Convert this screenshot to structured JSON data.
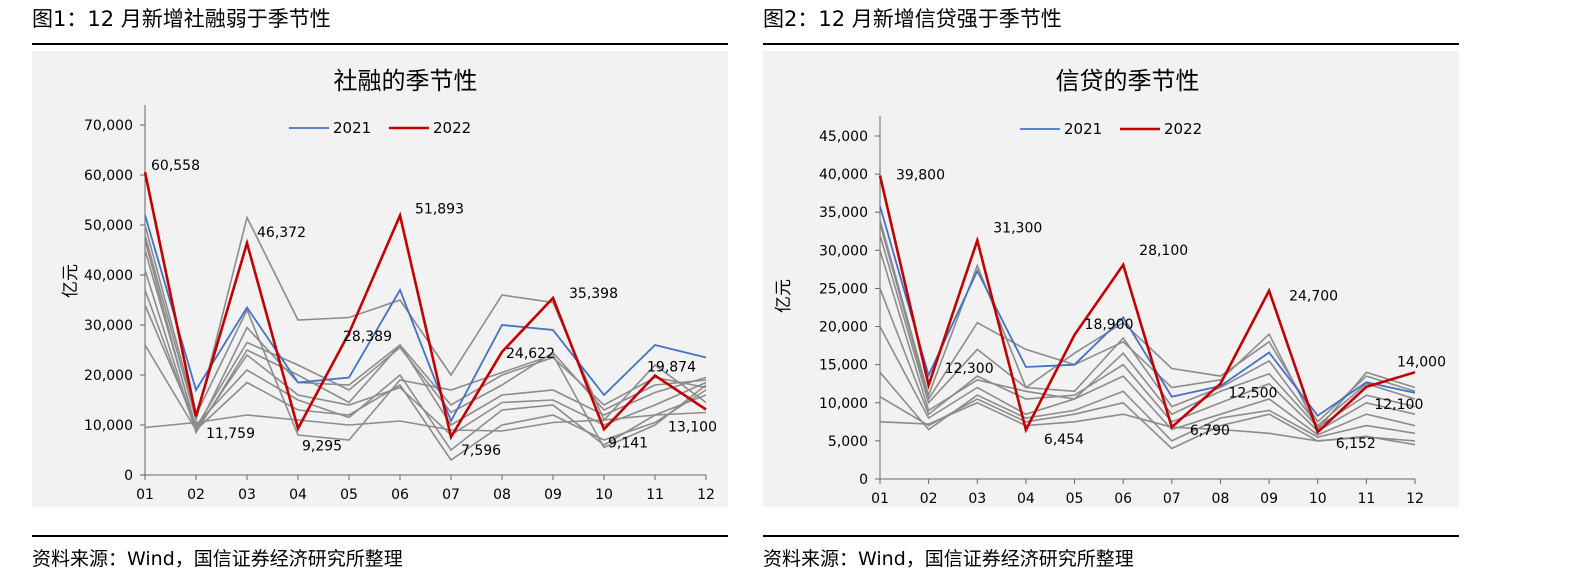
{
  "panels": [
    {
      "figure_title": "图1：12 月新增社融弱于季节性",
      "source": "资料来源：Wind，国信证券经济研究所整理",
      "chart_data": {
        "type": "line",
        "title": "社融的季节性",
        "ylabel": "亿元",
        "xlabel": "",
        "ylim": [
          0,
          70000
        ],
        "y_ticks": [
          0,
          10000,
          20000,
          30000,
          40000,
          50000,
          60000,
          70000
        ],
        "y_tick_labels": [
          "0",
          "10,000",
          "20,000",
          "30,000",
          "40,000",
          "50,000",
          "60,000",
          "70,000"
        ],
        "categories": [
          "01",
          "02",
          "03",
          "04",
          "05",
          "06",
          "07",
          "08",
          "09",
          "10",
          "11",
          "12"
        ],
        "legend_position": "top",
        "grid": false,
        "series": [
          {
            "name": "2021",
            "color": "#4472c4",
            "highlight": false,
            "values": [
              52000,
              17000,
              33500,
              18500,
              19500,
              37000,
              10800,
              30000,
              29000,
              16000,
              26000,
              23500
            ]
          },
          {
            "name": "2022",
            "color": "#c00000",
            "highlight": true,
            "values": [
              60558,
              11759,
              46372,
              9295,
              28389,
              51893,
              7596,
              24622,
              35398,
              9141,
              19874,
              13100
            ]
          },
          {
            "color": "#8c8c8c",
            "values": [
              9500,
              10500,
              12000,
              11000,
              10000,
              10800,
              9000,
              8800,
              10500,
              11000,
              12000,
              12500
            ]
          },
          {
            "color": "#8c8c8c",
            "values": [
              26000,
              9000,
              18500,
              13000,
              12000,
              18000,
              3000,
              10000,
              12000,
              7000,
              10500,
              17000
            ]
          },
          {
            "color": "#8c8c8c",
            "values": [
              34000,
              10000,
              21000,
              15000,
              11500,
              20000,
              5000,
              13000,
              14000,
              6000,
              12000,
              16000
            ]
          },
          {
            "color": "#8c8c8c",
            "values": [
              37000,
              9000,
              24000,
              16000,
              14000,
              17500,
              8000,
              14500,
              15000,
              10000,
              14000,
              18500
            ]
          },
          {
            "color": "#8c8c8c",
            "values": [
              41000,
              8500,
              25000,
              20000,
              14500,
              26000,
              10000,
              16000,
              17000,
              12000,
              16500,
              19500
            ]
          },
          {
            "color": "#8c8c8c",
            "values": [
              45000,
              9500,
              26500,
              22000,
              17000,
              25500,
              12500,
              18000,
              24500,
              13000,
              18000,
              19000
            ]
          },
          {
            "color": "#8c8c8c",
            "values": [
              47000,
              8700,
              29500,
              18500,
              18000,
              26000,
              14000,
              20000,
              23500,
              14000,
              19500,
              17500
            ]
          },
          {
            "color": "#8c8c8c",
            "values": [
              50000,
              12000,
              33000,
              8000,
              7000,
              19000,
              17000,
              20500,
              24000,
              5500,
              10000,
              18000
            ]
          },
          {
            "color": "#8c8c8c",
            "values": [
              48000,
              11000,
              51500,
              31000,
              31500,
              35000,
              20000,
              36000,
              34500,
              11000,
              22000,
              14500
            ]
          }
        ],
        "data_labels": [
          {
            "series": 1,
            "index": 0,
            "text": "60,558"
          },
          {
            "series": 1,
            "index": 1,
            "text": "11,759"
          },
          {
            "series": 1,
            "index": 2,
            "text": "46,372"
          },
          {
            "series": 1,
            "index": 3,
            "text": "9,295"
          },
          {
            "series": 1,
            "index": 4,
            "text": "28,389"
          },
          {
            "series": 1,
            "index": 5,
            "text": "51,893"
          },
          {
            "series": 1,
            "index": 6,
            "text": "7,596"
          },
          {
            "series": 1,
            "index": 7,
            "text": "24,622"
          },
          {
            "series": 1,
            "index": 8,
            "text": "35,398"
          },
          {
            "series": 1,
            "index": 9,
            "text": "9,141"
          },
          {
            "series": 1,
            "index": 10,
            "text": "19,874"
          },
          {
            "series": 1,
            "index": 11,
            "text": "13,100"
          }
        ]
      }
    },
    {
      "figure_title": "图2：12 月新增信贷强于季节性",
      "source": "资料来源：Wind，国信证券经济研究所整理",
      "chart_data": {
        "type": "line",
        "title": "信贷的季节性",
        "ylabel": "亿元",
        "xlabel": "",
        "ylim": [
          0,
          45000
        ],
        "y_ticks": [
          0,
          5000,
          10000,
          15000,
          20000,
          25000,
          30000,
          35000,
          40000,
          45000
        ],
        "y_tick_labels": [
          "0",
          "5,000",
          "10,000",
          "15,000",
          "20,000",
          "25,000",
          "30,000",
          "35,000",
          "40,000",
          "45,000"
        ],
        "categories": [
          "01",
          "02",
          "03",
          "04",
          "05",
          "06",
          "07",
          "08",
          "09",
          "10",
          "11",
          "12"
        ],
        "legend_position": "top",
        "grid": false,
        "series": [
          {
            "name": "2021",
            "color": "#4472c4",
            "highlight": false,
            "values": [
              35800,
              13600,
              27300,
              14700,
              15000,
              21200,
              10800,
              12200,
              16600,
              8300,
              12700,
              11300
            ]
          },
          {
            "name": "2022",
            "color": "#c00000",
            "highlight": true,
            "values": [
              39800,
              12300,
              31300,
              6454,
              18900,
              28100,
              6790,
              12500,
              24700,
              6152,
              12100,
              14000
            ]
          },
          {
            "color": "#8c8c8c",
            "values": [
              7500,
              7200,
              10000,
              7000,
              7500,
              8500,
              6800,
              6500,
              6000,
              5000,
              5600,
              4500
            ]
          },
          {
            "color": "#8c8c8c",
            "values": [
              10800,
              7000,
              10500,
              7500,
              8500,
              10000,
              4000,
              7000,
              8500,
              5000,
              5500,
              5000
            ]
          },
          {
            "color": "#8c8c8c",
            "values": [
              14000,
              6500,
              11000,
              8000,
              9000,
              11500,
              5000,
              8000,
              9000,
              5500,
              7000,
              6000
            ]
          },
          {
            "color": "#8c8c8c",
            "values": [
              20000,
              8000,
              12000,
              8500,
              10500,
              13500,
              6500,
              8500,
              10500,
              5800,
              8500,
              7000
            ]
          },
          {
            "color": "#8c8c8c",
            "values": [
              25000,
              8500,
              13500,
              10500,
              11000,
              15000,
              7500,
              10000,
              12500,
              6300,
              10000,
              8500
            ]
          },
          {
            "color": "#8c8c8c",
            "values": [
              30000,
              9000,
              13000,
              11500,
              10500,
              16500,
              8500,
              11500,
              13800,
              6800,
              11000,
              9500
            ]
          },
          {
            "color": "#8c8c8c",
            "values": [
              32000,
              10000,
              17000,
              12000,
              11500,
              18500,
              9500,
              12000,
              15500,
              7000,
              12500,
              10500
            ]
          },
          {
            "color": "#8c8c8c",
            "values": [
              33500,
              10500,
              20500,
              17000,
              15000,
              18000,
              12000,
              13000,
              19000,
              6500,
              14000,
              12000
            ]
          },
          {
            "color": "#8c8c8c",
            "values": [
              34000,
              11000,
              28000,
              12000,
              16500,
              20500,
              14500,
              13500,
              18000,
              7500,
              13500,
              11500
            ]
          }
        ],
        "data_labels": [
          {
            "series": 1,
            "index": 0,
            "text": "39,800"
          },
          {
            "series": 1,
            "index": 2,
            "text": "31,300"
          },
          {
            "series": 1,
            "index": 5,
            "text": "28,100"
          },
          {
            "series": 1,
            "index": 8,
            "text": "24,700"
          },
          {
            "series": 1,
            "index": 4,
            "text": "18,900"
          },
          {
            "series": 1,
            "index": 11,
            "text": "14,000"
          },
          {
            "series": 1,
            "index": 1,
            "text": "12,300"
          },
          {
            "series": 1,
            "index": 7,
            "text": "12,500"
          },
          {
            "series": 1,
            "index": 10,
            "text": "12,100"
          },
          {
            "series": 1,
            "index": 3,
            "text": "6,454"
          },
          {
            "series": 1,
            "index": 6,
            "text": "6,790"
          },
          {
            "series": 1,
            "index": 9,
            "text": "6,152"
          }
        ]
      }
    }
  ]
}
